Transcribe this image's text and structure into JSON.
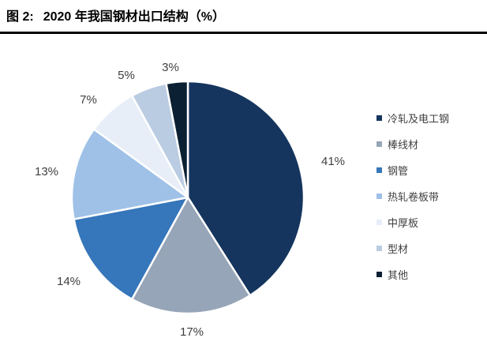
{
  "header": {
    "figure_label": "图 2:",
    "title": "2020 年我国钢材出口结构（%）"
  },
  "chart_data": {
    "type": "pie",
    "title": "2020 年我国钢材出口结构（%）",
    "unit": "%",
    "labels": [
      "冷轧及电工钢",
      "棒线材",
      "钢管",
      "热轧卷板带",
      "中厚板",
      "型材",
      "其他"
    ],
    "values": [
      41,
      17,
      14,
      13,
      7,
      5,
      3
    ],
    "colors": [
      "#15355E",
      "#97A5B8",
      "#3676BA",
      "#9FC1E7",
      "#E7EEF8",
      "#BACCE2",
      "#0C2033"
    ],
    "data_label_color": "#404040",
    "slice_border_color": "#FFFFFF",
    "legend_position": "right",
    "start_angle_deg": 0,
    "direction": "clockwise"
  }
}
